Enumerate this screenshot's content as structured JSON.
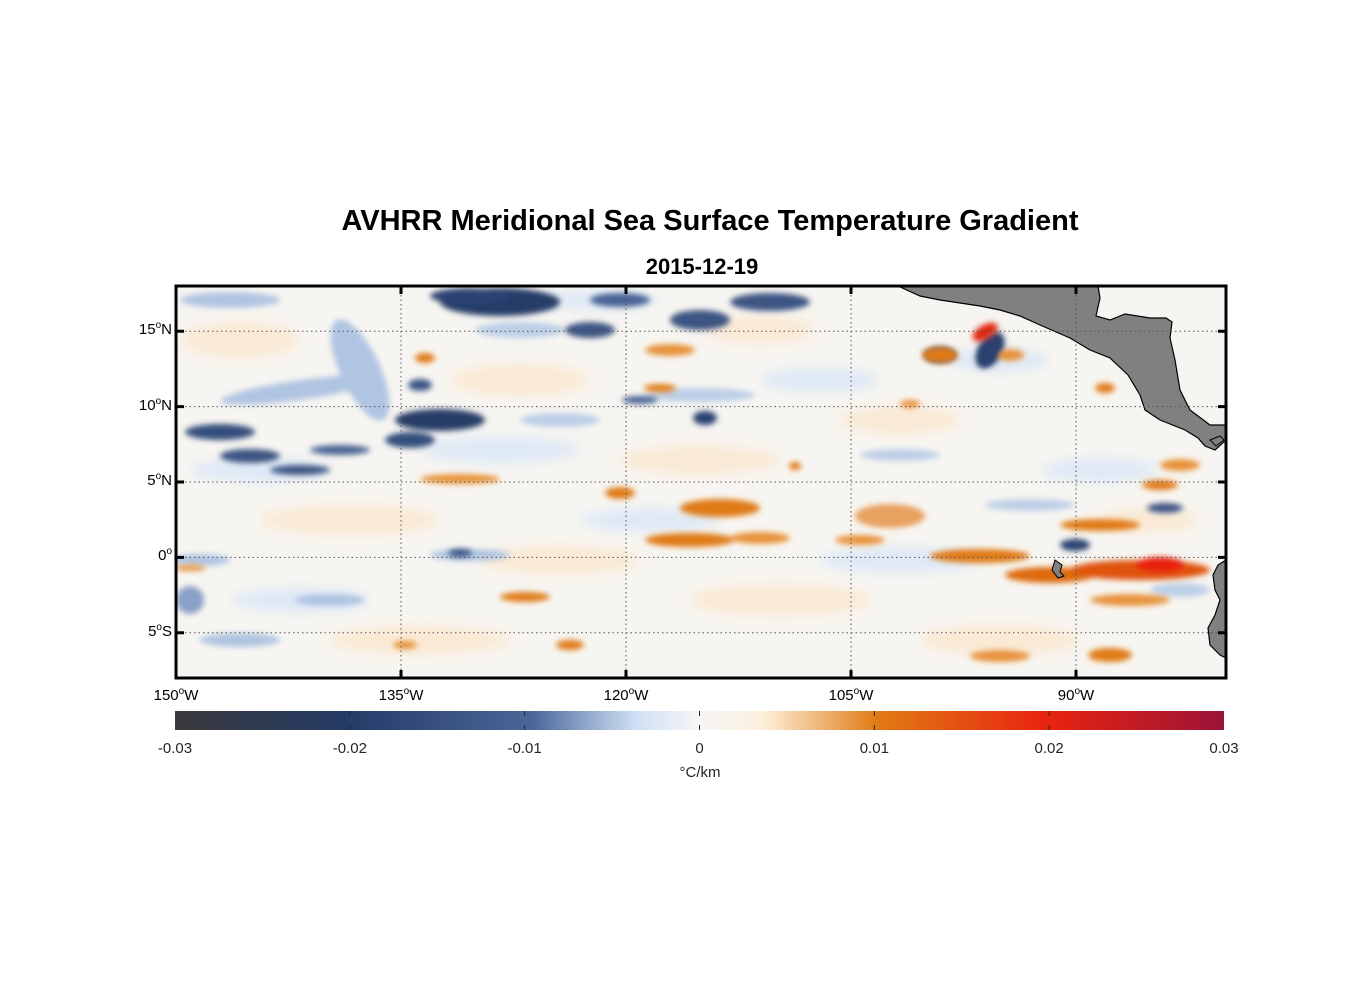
{
  "map": {
    "title": "AVHRR Meridional Sea Surface Temperature Gradient",
    "subtitle": "2015-12-19",
    "extent": {
      "lon": [
        -150,
        -80
      ],
      "lat": [
        -8,
        18
      ]
    },
    "grid": true,
    "lat_ticks": [
      {
        "value": 15,
        "num": "15",
        "deg": "o",
        "hemi": "N"
      },
      {
        "value": 10,
        "num": "10",
        "deg": "o",
        "hemi": "N"
      },
      {
        "value": 5,
        "num": "5",
        "deg": "o",
        "hemi": "N"
      },
      {
        "value": 0,
        "num": "0",
        "deg": "o",
        "hemi": ""
      },
      {
        "value": -5,
        "num": "5",
        "deg": "o",
        "hemi": "S"
      }
    ],
    "lon_ticks": [
      {
        "value": -150,
        "num": "150",
        "deg": "o",
        "hemi": "W"
      },
      {
        "value": -135,
        "num": "135",
        "deg": "o",
        "hemi": "W"
      },
      {
        "value": -120,
        "num": "120",
        "deg": "o",
        "hemi": "W"
      },
      {
        "value": -105,
        "num": "105",
        "deg": "o",
        "hemi": "W"
      },
      {
        "value": -90,
        "num": "90",
        "deg": "o",
        "hemi": "W"
      }
    ],
    "land_color": "#808080",
    "colorbar": {
      "range": [
        -0.03,
        0.03
      ],
      "tick_labels": [
        "-0.03",
        "-0.02",
        "-0.01",
        "0",
        "0.01",
        "0.02",
        "0.03"
      ],
      "unit": "°C/km",
      "colors": [
        "#3a3a3a",
        "#243a66",
        "#4a6698",
        "#cfe1f5",
        "#fdf3e3",
        "#e07a14",
        "#e8240f",
        "#9c1338"
      ]
    }
  }
}
